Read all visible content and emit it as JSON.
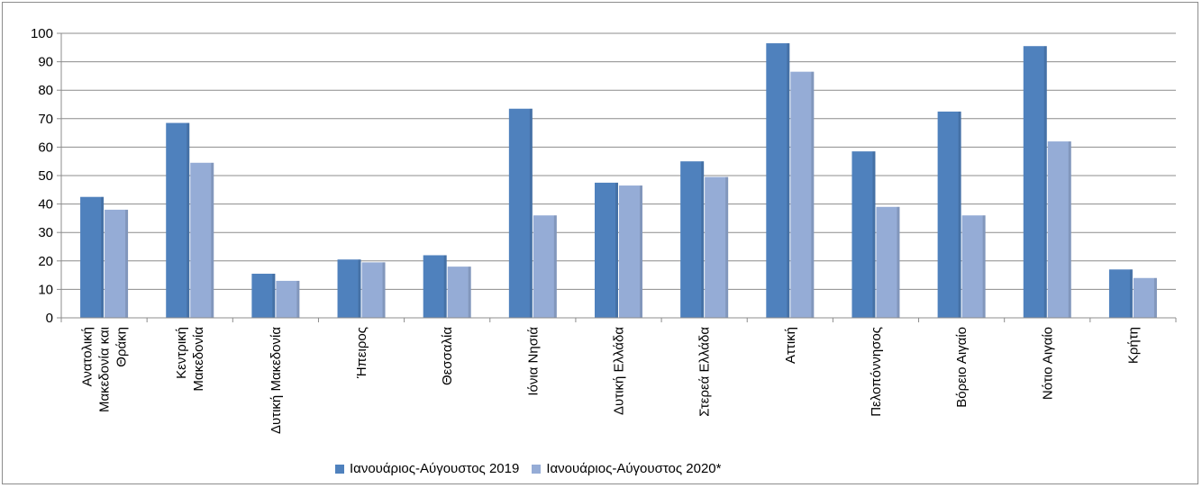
{
  "chart_data": {
    "type": "bar",
    "title": "",
    "xlabel": "",
    "ylabel": "",
    "ylim": [
      0,
      100
    ],
    "yticks": [
      0,
      10,
      20,
      30,
      40,
      50,
      60,
      70,
      80,
      90,
      100
    ],
    "grid": true,
    "legend_position": "bottom",
    "categories": [
      [
        "Ανατολική",
        "Μακεδονία και",
        "Θράκη"
      ],
      [
        "Κεντρική",
        "Μακεδονία"
      ],
      [
        "Δυτική Μακεδονία"
      ],
      [
        "Ήπειρος"
      ],
      [
        "Θεσσαλία"
      ],
      [
        "Ιόνια Νησιά"
      ],
      [
        "Δυτική Ελλάδα"
      ],
      [
        "Στερεά Ελλάδα"
      ],
      [
        "Αττική"
      ],
      [
        "Πελοπόννησος"
      ],
      [
        "Βόρειο Αιγαίο"
      ],
      [
        "Νότιο Αιγαίο"
      ],
      [
        "Κρήτη"
      ]
    ],
    "series": [
      {
        "name": "Ιανουάριος-Αύγουστος 2019",
        "color": "#4f81bd",
        "values": [
          42.5,
          68.5,
          15.5,
          20.5,
          22,
          73.5,
          47.5,
          55,
          96.5,
          58.5,
          72.5,
          95.5,
          17
        ]
      },
      {
        "name": "Ιανουάριος-Αύγουστος 2020*",
        "color": "#95acd6",
        "values": [
          38,
          54.5,
          13,
          19.5,
          18,
          36,
          46.5,
          49.5,
          86.5,
          39,
          36,
          62,
          14
        ]
      }
    ]
  }
}
